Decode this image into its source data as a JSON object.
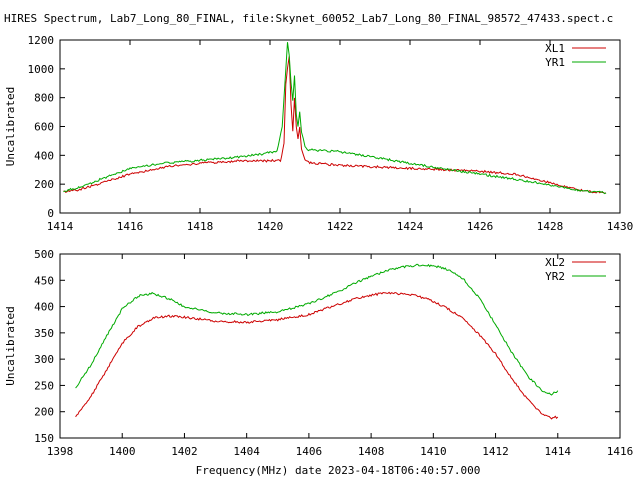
{
  "title": "HIRES Spectrum, Lab7_Long_80_FINAL, file:Skynet_60052_Lab7_Long_80_FINAL_98572_47433.spect.c",
  "xlabel_bottom": "Frequency(MHz) date 2023-04-18T06:40:57.000",
  "colors": {
    "red": "#cc0000",
    "green": "#00aa00"
  },
  "chart_data": [
    {
      "type": "line",
      "ylabel": "Uncalibrated",
      "xlim": [
        1414,
        1430
      ],
      "ylim": [
        0,
        1200
      ],
      "xticks": [
        1414,
        1416,
        1418,
        1420,
        1422,
        1424,
        1426,
        1428,
        1430
      ],
      "yticks": [
        0,
        200,
        400,
        600,
        800,
        1000,
        1200
      ],
      "legend_position": "top-right",
      "series": [
        {
          "name": "XL1",
          "color": "#cc0000",
          "x": [
            1414.1,
            1414.5,
            1415,
            1416,
            1417,
            1418,
            1419,
            1419.5,
            1420,
            1420.3,
            1420.4,
            1420.45,
            1420.5,
            1420.55,
            1420.6,
            1420.65,
            1420.7,
            1420.75,
            1420.8,
            1420.85,
            1420.9,
            1420.95,
            1421.0,
            1421.1,
            1421.3,
            1422,
            1423,
            1424,
            1425,
            1426,
            1427,
            1428,
            1429,
            1429.6
          ],
          "y": [
            145,
            160,
            195,
            270,
            320,
            345,
            360,
            362,
            362,
            365,
            480,
            900,
            1010,
            1080,
            750,
            560,
            800,
            600,
            520,
            600,
            450,
            400,
            370,
            350,
            345,
            330,
            320,
            310,
            300,
            290,
            270,
            210,
            150,
            140
          ]
        },
        {
          "name": "YR1",
          "color": "#00aa00",
          "x": [
            1414.1,
            1414.5,
            1415,
            1416,
            1417,
            1418,
            1419,
            1419.8,
            1420.2,
            1420.35,
            1420.45,
            1420.5,
            1420.55,
            1420.6,
            1420.65,
            1420.7,
            1420.75,
            1420.8,
            1420.85,
            1420.9,
            1420.95,
            1421.0,
            1421.1,
            1421.3,
            1422,
            1423,
            1424,
            1425,
            1426,
            1427,
            1428,
            1429,
            1429.6
          ],
          "y": [
            150,
            175,
            220,
            310,
            345,
            365,
            385,
            410,
            430,
            600,
            1000,
            1180,
            1100,
            900,
            780,
            950,
            680,
            600,
            700,
            560,
            520,
            460,
            440,
            435,
            425,
            385,
            345,
            305,
            270,
            235,
            195,
            150,
            140
          ]
        }
      ]
    },
    {
      "type": "line",
      "ylabel": "Uncalibrated",
      "xlabel": "Frequency(MHz) date 2023-04-18T06:40:57.000",
      "xlim": [
        1398,
        1416
      ],
      "ylim": [
        150,
        500
      ],
      "xticks": [
        1398,
        1400,
        1402,
        1404,
        1406,
        1408,
        1410,
        1412,
        1414,
        1416
      ],
      "yticks": [
        150,
        200,
        250,
        300,
        350,
        400,
        450,
        500
      ],
      "legend_position": "top-right",
      "series": [
        {
          "name": "XL2",
          "color": "#cc0000",
          "x": [
            1398.5,
            1399,
            1399.5,
            1400,
            1400.5,
            1401,
            1401.5,
            1402,
            1403,
            1404,
            1405,
            1406,
            1407,
            1407.5,
            1408,
            1408.5,
            1409,
            1409.5,
            1410,
            1410.5,
            1411,
            1411.5,
            1412,
            1412.5,
            1413,
            1413.5,
            1413.8,
            1414
          ],
          "y": [
            190,
            230,
            280,
            330,
            362,
            378,
            382,
            380,
            372,
            370,
            375,
            385,
            405,
            415,
            422,
            426,
            424,
            420,
            410,
            395,
            375,
            345,
            310,
            265,
            225,
            195,
            188,
            190
          ]
        },
        {
          "name": "YR2",
          "color": "#00aa00",
          "x": [
            1398.5,
            1399,
            1399.5,
            1400,
            1400.5,
            1401,
            1401.5,
            1402,
            1403,
            1404,
            1405,
            1406,
            1407,
            1407.5,
            1408,
            1408.5,
            1409,
            1409.5,
            1410,
            1410.5,
            1411,
            1411.5,
            1412,
            1412.5,
            1413,
            1413.5,
            1413.8,
            1414
          ],
          "y": [
            245,
            290,
            345,
            395,
            420,
            425,
            415,
            400,
            388,
            385,
            390,
            405,
            430,
            445,
            458,
            468,
            475,
            479,
            478,
            470,
            450,
            415,
            365,
            315,
            270,
            240,
            232,
            240
          ]
        }
      ]
    }
  ]
}
